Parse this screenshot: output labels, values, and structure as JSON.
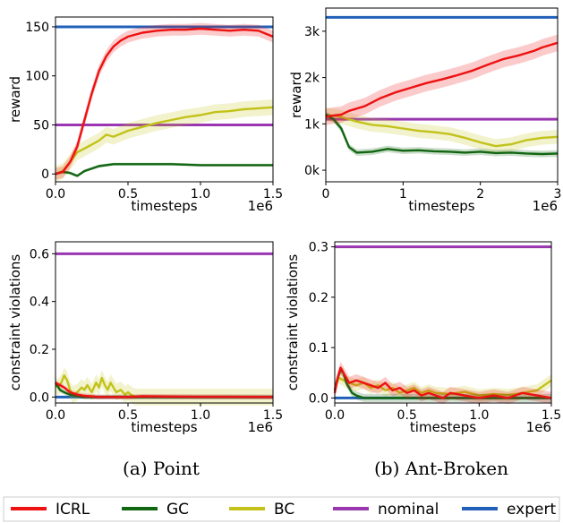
{
  "colors": {
    "ICRL": "#ee1111",
    "GC": "#116611",
    "BC": "#c2c21a",
    "nominal": "#9a36b0",
    "expert": "#2060b8"
  },
  "legend": [
    "ICRL",
    "GC",
    "BC",
    "nominal",
    "expert"
  ],
  "captions": [
    "(a) Point",
    "(b) Ant-Broken"
  ],
  "chart_data": [
    {
      "type": "line",
      "env": "Point",
      "ylabel": "reward",
      "xlabel": "timesteps",
      "x_multiplier": "1e6",
      "xlim": [
        0,
        1.5
      ],
      "ylim": [
        -8,
        160
      ],
      "xticks": [
        "0.0",
        "0.5",
        "1.0",
        "1.5"
      ],
      "xtick_values": [
        0,
        0.5,
        1.0,
        1.5
      ],
      "yticks": [
        "0",
        "50",
        "100",
        "150"
      ],
      "ytick_values": [
        0,
        50,
        100,
        150
      ],
      "hlines": [
        {
          "series": "expert",
          "y": 150
        },
        {
          "series": "nominal",
          "y": 50
        }
      ],
      "series": [
        {
          "name": "ICRL",
          "band": 6,
          "x": [
            0,
            0.05,
            0.1,
            0.15,
            0.2,
            0.25,
            0.3,
            0.35,
            0.4,
            0.45,
            0.5,
            0.6,
            0.7,
            0.8,
            0.9,
            1.0,
            1.1,
            1.2,
            1.3,
            1.4,
            1.45,
            1.5
          ],
          "y": [
            0,
            2,
            12,
            28,
            55,
            82,
            105,
            120,
            130,
            136,
            140,
            144,
            146,
            147,
            147,
            148,
            147,
            146,
            147,
            146,
            143,
            140
          ]
        },
        {
          "name": "GC",
          "band": 1.5,
          "x": [
            0,
            0.05,
            0.1,
            0.15,
            0.2,
            0.3,
            0.4,
            0.5,
            0.6,
            0.8,
            1.0,
            1.2,
            1.4,
            1.5
          ],
          "y": [
            0,
            2,
            1,
            -2,
            3,
            8,
            10,
            10,
            10,
            10,
            9,
            9,
            9,
            9
          ]
        },
        {
          "name": "BC",
          "band": 8,
          "x": [
            0,
            0.05,
            0.1,
            0.15,
            0.2,
            0.25,
            0.3,
            0.35,
            0.4,
            0.5,
            0.6,
            0.7,
            0.8,
            0.9,
            1.0,
            1.1,
            1.2,
            1.3,
            1.4,
            1.5
          ],
          "y": [
            0,
            3,
            12,
            22,
            26,
            30,
            34,
            40,
            38,
            44,
            48,
            52,
            55,
            58,
            60,
            63,
            64,
            66,
            67,
            68
          ]
        }
      ]
    },
    {
      "type": "line",
      "env": "Ant-Broken",
      "ylabel": "reward",
      "xlabel": "timesteps",
      "x_multiplier": "1e6",
      "xlim": [
        0,
        3
      ],
      "ylim": [
        -250,
        3500
      ],
      "xticks": [
        "0",
        "1",
        "2",
        "3"
      ],
      "xtick_values": [
        0,
        1,
        2,
        3
      ],
      "yticks": [
        "0k",
        "1k",
        "2k",
        "3k"
      ],
      "ytick_values": [
        0,
        1000,
        2000,
        3000
      ],
      "hlines": [
        {
          "series": "expert",
          "y": 3300
        },
        {
          "series": "nominal",
          "y": 1100
        }
      ],
      "series": [
        {
          "name": "ICRL",
          "band": 180,
          "x": [
            0,
            0.1,
            0.2,
            0.3,
            0.5,
            0.7,
            0.9,
            1.1,
            1.3,
            1.5,
            1.7,
            1.9,
            2.1,
            2.3,
            2.5,
            2.7,
            2.8,
            2.9,
            3.0
          ],
          "y": [
            1150,
            1180,
            1200,
            1280,
            1380,
            1550,
            1680,
            1780,
            1880,
            1960,
            2050,
            2150,
            2280,
            2400,
            2480,
            2580,
            2650,
            2700,
            2750
          ]
        },
        {
          "name": "GC",
          "band": 70,
          "x": [
            0,
            0.1,
            0.2,
            0.3,
            0.4,
            0.6,
            0.8,
            1.0,
            1.2,
            1.4,
            1.6,
            1.8,
            2.0,
            2.2,
            2.4,
            2.6,
            2.8,
            3.0
          ],
          "y": [
            1200,
            1100,
            900,
            500,
            380,
            400,
            460,
            420,
            430,
            410,
            400,
            380,
            400,
            370,
            380,
            360,
            350,
            360
          ]
        },
        {
          "name": "BC",
          "band": 150,
          "x": [
            0,
            0.2,
            0.4,
            0.6,
            0.8,
            1.0,
            1.2,
            1.4,
            1.6,
            1.8,
            2.0,
            2.2,
            2.4,
            2.6,
            2.8,
            3.0
          ],
          "y": [
            1200,
            1150,
            1050,
            980,
            950,
            900,
            850,
            820,
            780,
            700,
            600,
            520,
            560,
            650,
            700,
            720
          ]
        }
      ]
    },
    {
      "type": "line",
      "env": "Point",
      "ylabel": "constraint violations",
      "xlabel": "timesteps",
      "x_multiplier": "1e6",
      "xlim": [
        0,
        1.5
      ],
      "ylim": [
        -0.025,
        0.65
      ],
      "xticks": [
        "0.0",
        "0.5",
        "1.0",
        "1.5"
      ],
      "xtick_values": [
        0,
        0.5,
        1.0,
        1.5
      ],
      "yticks": [
        "0.0",
        "0.2",
        "0.4",
        "0.6"
      ],
      "ytick_values": [
        0,
        0.2,
        0.4,
        0.6
      ],
      "hlines": [
        {
          "series": "expert",
          "y": 0
        },
        {
          "series": "nominal",
          "y": 0.6
        }
      ],
      "series": [
        {
          "name": "ICRL",
          "band": 0.01,
          "x": [
            0,
            0.03,
            0.06,
            0.1,
            0.15,
            0.2,
            0.3,
            0.4,
            0.5,
            0.6,
            0.8,
            1.0,
            1.2,
            1.5
          ],
          "y": [
            0.06,
            0.05,
            0.04,
            0.02,
            0.01,
            0.005,
            0,
            0,
            0,
            0.003,
            0.002,
            0.001,
            0.001,
            0
          ]
        },
        {
          "name": "GC",
          "band": 0.01,
          "x": [
            0,
            0.03,
            0.06,
            0.1,
            0.15,
            0.2,
            0.3,
            0.5,
            1.0,
            1.5
          ],
          "y": [
            0.06,
            0.03,
            0.02,
            0.01,
            0.005,
            0,
            0,
            0,
            0,
            0
          ]
        },
        {
          "name": "BC",
          "band": 0.035,
          "x": [
            0,
            0.02,
            0.04,
            0.06,
            0.08,
            0.1,
            0.12,
            0.15,
            0.18,
            0.2,
            0.22,
            0.25,
            0.28,
            0.3,
            0.32,
            0.34,
            0.36,
            0.38,
            0.4,
            0.42,
            0.45,
            0.48,
            0.5,
            0.52,
            0.55,
            0.6,
            0.8,
            1.0,
            1.5
          ],
          "y": [
            0.05,
            0.04,
            0.06,
            0.09,
            0.07,
            0.03,
            0.01,
            0.02,
            0.04,
            0.03,
            0.05,
            0.02,
            0.06,
            0.04,
            0.08,
            0.05,
            0.03,
            0.06,
            0.04,
            0.02,
            0.03,
            0.01,
            0.02,
            0.01,
            0,
            0,
            0,
            0,
            0
          ]
        }
      ]
    },
    {
      "type": "line",
      "env": "Ant-Broken",
      "ylabel": "constraint violations",
      "xlabel": "timesteps",
      "x_multiplier": "1e6",
      "xlim": [
        0,
        1.5
      ],
      "ylim": [
        -0.01,
        0.31
      ],
      "xticks": [
        "0.0",
        "0.5",
        "1.0",
        "1.5"
      ],
      "xtick_values": [
        0,
        0.5,
        1.0,
        1.5
      ],
      "yticks": [
        "0.0",
        "0.1",
        "0.2",
        "0.3"
      ],
      "ytick_values": [
        0,
        0.1,
        0.2,
        0.3
      ],
      "hlines": [
        {
          "series": "expert",
          "y": 0
        },
        {
          "series": "nominal",
          "y": 0.3
        }
      ],
      "series": [
        {
          "name": "ICRL",
          "band": 0.012,
          "x": [
            0,
            0.02,
            0.04,
            0.06,
            0.08,
            0.1,
            0.15,
            0.2,
            0.25,
            0.3,
            0.35,
            0.4,
            0.45,
            0.5,
            0.55,
            0.6,
            0.65,
            0.7,
            0.75,
            0.8,
            0.9,
            1.0,
            1.1,
            1.2,
            1.3,
            1.4,
            1.5
          ],
          "y": [
            0.01,
            0.04,
            0.06,
            0.05,
            0.04,
            0.03,
            0.035,
            0.03,
            0.025,
            0.02,
            0.03,
            0.015,
            0.02,
            0.01,
            0.015,
            0.005,
            0.01,
            0.005,
            0,
            0.01,
            0.005,
            0,
            0.005,
            0,
            0.01,
            0.005,
            0
          ]
        },
        {
          "name": "GC",
          "band": 0.008,
          "x": [
            0,
            0.02,
            0.04,
            0.06,
            0.08,
            0.1,
            0.12,
            0.15,
            0.2,
            0.25,
            0.3,
            0.4,
            0.6,
            0.8,
            1.0,
            1.5
          ],
          "y": [
            0.015,
            0.04,
            0.055,
            0.05,
            0.03,
            0.02,
            0.01,
            0.005,
            0,
            0,
            0,
            0,
            0,
            0,
            0,
            0
          ]
        },
        {
          "name": "BC",
          "band": 0.012,
          "x": [
            0,
            0.03,
            0.06,
            0.1,
            0.15,
            0.2,
            0.25,
            0.3,
            0.35,
            0.4,
            0.45,
            0.5,
            0.55,
            0.6,
            0.65,
            0.7,
            0.8,
            0.9,
            1.0,
            1.1,
            1.2,
            1.3,
            1.4,
            1.45,
            1.5
          ],
          "y": [
            0.02,
            0.04,
            0.035,
            0.03,
            0.025,
            0.03,
            0.02,
            0.025,
            0.015,
            0.02,
            0.01,
            0.015,
            0.02,
            0.01,
            0.015,
            0.01,
            0.008,
            0.012,
            0.005,
            0.008,
            0.006,
            0.01,
            0.015,
            0.025,
            0.035
          ]
        }
      ]
    }
  ]
}
